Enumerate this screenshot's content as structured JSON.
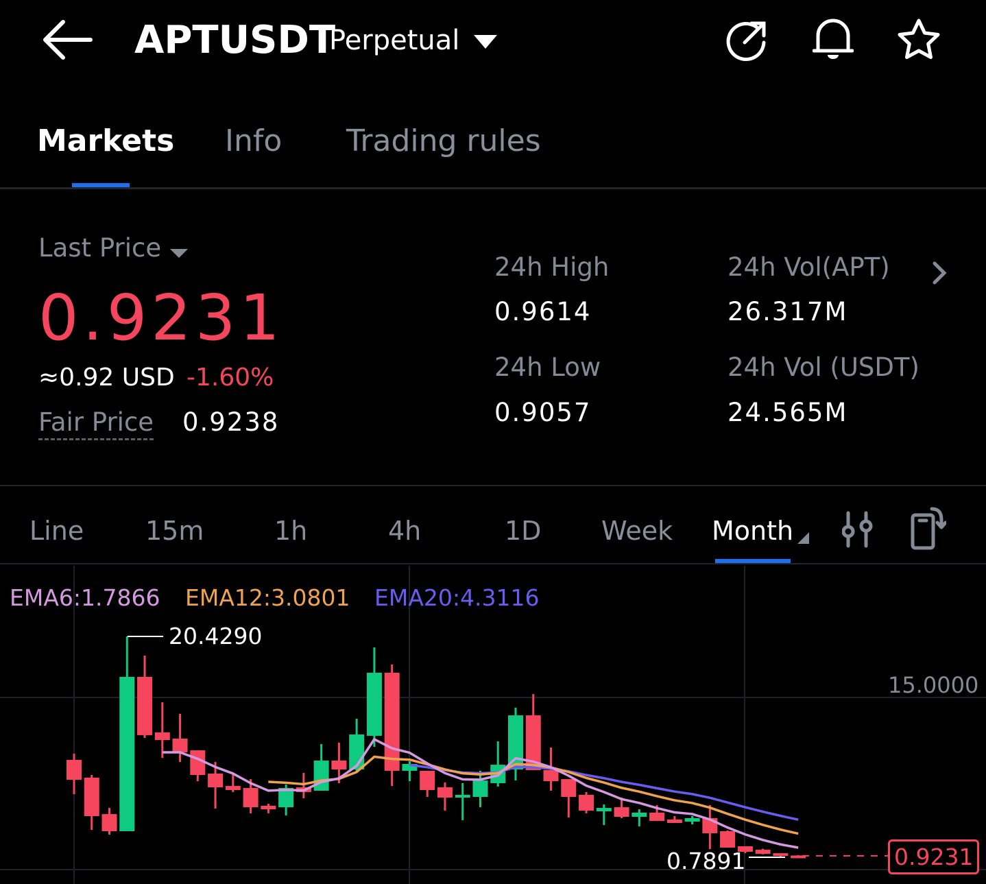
{
  "header": {
    "symbol": "APTUSDT",
    "contract_type": "Perpetual",
    "icons": [
      "back-arrow-icon",
      "share-icon",
      "bell-icon",
      "star-icon"
    ]
  },
  "tabs": [
    {
      "label": "Markets",
      "active": true
    },
    {
      "label": "Info",
      "active": false
    },
    {
      "label": "Trading rules",
      "active": false
    }
  ],
  "price": {
    "last_price_label": "Last Price",
    "last_price": "0.9231",
    "usd_approx": "≈0.92 USD",
    "change_pct": "-1.60%",
    "fair_price_label": "Fair Price",
    "fair_price": "0.9238"
  },
  "stats": {
    "high_label": "24h High",
    "high": "0.9614",
    "low_label": "24h Low",
    "low": "0.9057",
    "vol_apt_label": "24h Vol(APT)",
    "vol_apt": "26.317M",
    "vol_usdt_label": "24h Vol (USDT)",
    "vol_usdt": "24.565M"
  },
  "intervals": [
    {
      "label": "Line"
    },
    {
      "label": "15m"
    },
    {
      "label": "1h"
    },
    {
      "label": "4h"
    },
    {
      "label": "1D"
    },
    {
      "label": "Week"
    },
    {
      "label": "Month",
      "active": true
    }
  ],
  "colors": {
    "up": "#0ecb81",
    "down": "#f6465d",
    "accent": "#1e6ff0",
    "ema6": "#d599e2",
    "ema12": "#f0a24f",
    "ema20": "#6a5cf2"
  },
  "chart_data": {
    "type": "candlestick",
    "ema_labels": {
      "ema6": "EMA6:1.7866",
      "ema12": "EMA12:3.0801",
      "ema20": "EMA20:4.3116"
    },
    "max_label": "20.4290",
    "min_label": "0.7891",
    "y_tick": "15.0000",
    "last_price_tag": "0.9231",
    "candles": [
      [
        9.45,
        7.68,
        10.0,
        6.4
      ],
      [
        7.87,
        4.45,
        8.11,
        3.23
      ],
      [
        4.63,
        3.11,
        5.18,
        2.8
      ],
      [
        3.11,
        16.83,
        20.429,
        3.11
      ],
      [
        16.83,
        11.65,
        18.72,
        11.4
      ],
      [
        11.89,
        11.22,
        14.57,
        9.63
      ],
      [
        11.34,
        10.12,
        13.54,
        9.27
      ],
      [
        10.3,
        8.11,
        10.3,
        7.56
      ],
      [
        8.23,
        7.01,
        9.27,
        5.12
      ],
      [
        7.13,
        6.77,
        8.23,
        6.59
      ],
      [
        6.95,
        5.24,
        7.74,
        4.7
      ],
      [
        5.37,
        5.06,
        5.55,
        4.7
      ],
      [
        5.24,
        6.95,
        7.26,
        4.51
      ],
      [
        7.01,
        6.59,
        8.29,
        6.04
      ],
      [
        6.71,
        9.39,
        10.85,
        6.71
      ],
      [
        9.39,
        8.6,
        10.98,
        7.38
      ],
      [
        8.6,
        11.71,
        13.11,
        8.29
      ],
      [
        11.59,
        17.2,
        19.45,
        10.61
      ],
      [
        17.2,
        8.48,
        17.93,
        7.13
      ],
      [
        8.48,
        9.09,
        9.33,
        7.56
      ],
      [
        8.48,
        6.77,
        8.48,
        6.16
      ],
      [
        7.01,
        6.1,
        7.44,
        4.94
      ],
      [
        6.1,
        6.34,
        7.38,
        4.09
      ],
      [
        6.16,
        7.62,
        8.48,
        5.24
      ],
      [
        7.38,
        9.02,
        11.1,
        7.07
      ],
      [
        8.6,
        13.41,
        14.09,
        7.62
      ],
      [
        13.41,
        8.54,
        15.3,
        8.54
      ],
      [
        8.54,
        7.56,
        10.55,
        6.71
      ],
      [
        7.74,
        6.16,
        7.74,
        4.33
      ],
      [
        6.34,
        4.94,
        6.59,
        4.7
      ],
      [
        4.88,
        5.18,
        5.49,
        3.66
      ],
      [
        5.24,
        4.39,
        6.1,
        4.27
      ],
      [
        4.39,
        4.76,
        5.06,
        3.54
      ],
      [
        4.76,
        4.02,
        5.43,
        4.02
      ],
      [
        4.15,
        3.84,
        4.45,
        3.84
      ],
      [
        3.96,
        4.27,
        4.45,
        3.72
      ],
      [
        4.27,
        2.93,
        5.43,
        1.52
      ],
      [
        3.11,
        1.65,
        3.17,
        1.65
      ],
      [
        1.77,
        1.28,
        1.77,
        1.16
      ],
      [
        1.46,
        1.1,
        1.55,
        1.05
      ],
      [
        1.15,
        0.95,
        1.15,
        0.7891
      ],
      [
        0.95,
        0.9231,
        0.98,
        0.88
      ]
    ]
  }
}
